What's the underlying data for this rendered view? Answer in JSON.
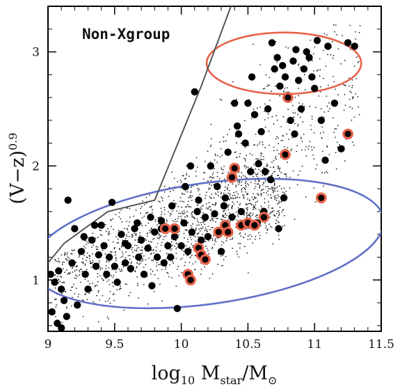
{
  "chart_data": {
    "type": "scatter",
    "title": "Non-Xgroup",
    "xlabel": {
      "main": "log",
      "sub1": "10",
      "mid": " M",
      "sub2": "star",
      "tail": "/M",
      "sub3": "⊙"
    },
    "ylabel": {
      "main": "(V−z)",
      "sup": "0.9"
    },
    "xlim": [
      9,
      11.5
    ],
    "ylim": [
      0.55,
      3.4
    ],
    "xticks": [
      "9",
      "9.5",
      "10",
      "10.5",
      "11",
      "11.5"
    ],
    "yticks": [
      "1",
      "2",
      "3"
    ],
    "grid": false,
    "boundary_line": {
      "color": "#555555",
      "points": [
        [
          9,
          1.15
        ],
        [
          9.12,
          1.32
        ],
        [
          9.45,
          1.6
        ],
        [
          9.8,
          1.7
        ],
        [
          10.15,
          2.7
        ],
        [
          10.42,
          3.55
        ]
      ]
    },
    "ellipses": [
      {
        "name": "red-sequence",
        "color": "#e8624a",
        "cx": 10.77,
        "cy": 2.9,
        "rx": 0.58,
        "ry": 0.27,
        "angle": 0
      },
      {
        "name": "blue-cloud",
        "color": "#6070c8",
        "cx": 10.2,
        "cy": 1.32,
        "rx": 1.33,
        "ry": 0.53,
        "angle": 8
      }
    ],
    "series": [
      {
        "type": "large",
        "color": "#000000",
        "points": [
          [
            9.02,
            1.05
          ],
          [
            9.05,
            0.98
          ],
          [
            9.08,
            1.08
          ],
          [
            9.1,
            0.92
          ],
          [
            9.12,
            0.82
          ],
          [
            9.15,
            1.7
          ],
          [
            9.18,
            1.15
          ],
          [
            9.22,
            0.78
          ],
          [
            9.25,
            1.25
          ],
          [
            9.28,
            1.05
          ],
          [
            9.3,
            0.92
          ],
          [
            9.33,
            1.35
          ],
          [
            9.36,
            1.12
          ],
          [
            9.38,
            1.22
          ],
          [
            9.4,
            1.48
          ],
          [
            9.42,
            1.3
          ],
          [
            9.44,
            1.05
          ],
          [
            9.46,
            1.2
          ],
          [
            9.5,
            1.12
          ],
          [
            9.52,
            0.98
          ],
          [
            9.55,
            1.4
          ],
          [
            9.58,
            1.15
          ],
          [
            9.6,
            1.3
          ],
          [
            9.62,
            1.1
          ],
          [
            9.65,
            1.45
          ],
          [
            9.68,
            1.2
          ],
          [
            9.7,
            1.35
          ],
          [
            9.72,
            1.05
          ],
          [
            9.75,
            1.28
          ],
          [
            9.78,
            0.95
          ],
          [
            9.8,
            1.42
          ],
          [
            9.82,
            1.2
          ],
          [
            9.85,
            1.45
          ],
          [
            9.87,
            1.15
          ],
          [
            9.9,
            1.3
          ],
          [
            9.92,
            1.2
          ],
          [
            9.95,
            1.38
          ],
          [
            9.97,
            0.75
          ],
          [
            10.0,
            1.3
          ],
          [
            10.02,
            1.5
          ],
          [
            10.05,
            1.25
          ],
          [
            10.08,
            1.42
          ],
          [
            10.1,
            2.65
          ],
          [
            10.12,
            1.6
          ],
          [
            10.15,
            1.35
          ],
          [
            10.18,
            1.55
          ],
          [
            10.2,
            1.38
          ],
          [
            10.22,
            2.0
          ],
          [
            10.25,
            1.58
          ],
          [
            10.28,
            1.4
          ],
          [
            10.3,
            1.25
          ],
          [
            10.32,
            1.65
          ],
          [
            10.35,
            2.12
          ],
          [
            10.38,
            1.55
          ],
          [
            10.4,
            2.55
          ],
          [
            10.42,
            2.35
          ],
          [
            10.45,
            1.6
          ],
          [
            10.48,
            2.2
          ],
          [
            10.5,
            2.55
          ],
          [
            10.52,
            1.95
          ],
          [
            10.55,
            2.45
          ],
          [
            10.58,
            2.02
          ],
          [
            10.6,
            2.3
          ],
          [
            10.62,
            1.6
          ],
          [
            10.65,
            2.5
          ],
          [
            10.68,
            3.08
          ],
          [
            10.7,
            2.85
          ],
          [
            10.72,
            2.95
          ],
          [
            10.74,
            2.7
          ],
          [
            10.76,
            2.88
          ],
          [
            10.78,
            2.78
          ],
          [
            10.8,
            2.62
          ],
          [
            10.82,
            2.4
          ],
          [
            10.84,
            2.92
          ],
          [
            10.86,
            3.02
          ],
          [
            10.88,
            2.75
          ],
          [
            10.9,
            2.5
          ],
          [
            10.92,
            2.85
          ],
          [
            10.94,
            3.0
          ],
          [
            10.96,
            2.95
          ],
          [
            10.98,
            2.78
          ],
          [
            11.0,
            2.68
          ],
          [
            11.02,
            3.1
          ],
          [
            11.05,
            2.4
          ],
          [
            11.08,
            2.05
          ],
          [
            11.1,
            3.05
          ],
          [
            11.15,
            2.55
          ],
          [
            11.2,
            2.15
          ],
          [
            11.25,
            3.08
          ],
          [
            11.3,
            3.05
          ],
          [
            9.03,
            0.72
          ],
          [
            9.07,
            0.62
          ],
          [
            9.1,
            0.58
          ],
          [
            9.14,
            0.68
          ],
          [
            9.2,
            1.45
          ],
          [
            9.27,
            1.38
          ],
          [
            9.35,
            1.48
          ],
          [
            9.48,
            1.68
          ],
          [
            9.58,
            1.32
          ],
          [
            9.67,
            1.5
          ],
          [
            9.77,
            1.55
          ],
          [
            9.85,
            1.52
          ],
          [
            9.93,
            1.65
          ],
          [
            10.03,
            1.82
          ],
          [
            10.07,
            2.0
          ],
          [
            10.13,
            1.7
          ],
          [
            10.27,
            1.82
          ],
          [
            10.33,
            1.72
          ],
          [
            10.43,
            2.28
          ],
          [
            10.53,
            2.78
          ],
          [
            10.57,
            1.5
          ],
          [
            10.63,
            1.95
          ],
          [
            10.67,
            1.88
          ],
          [
            10.73,
            1.45
          ],
          [
            10.77,
            1.72
          ],
          [
            10.85,
            2.28
          ]
        ]
      },
      {
        "type": "highlighted",
        "color": "#000000",
        "ring": "#e8624a",
        "points": [
          [
            9.88,
            1.45
          ],
          [
            9.95,
            1.45
          ],
          [
            10.05,
            1.05
          ],
          [
            10.07,
            1.0
          ],
          [
            10.13,
            1.28
          ],
          [
            10.15,
            1.22
          ],
          [
            10.18,
            1.18
          ],
          [
            10.28,
            1.42
          ],
          [
            10.33,
            1.48
          ],
          [
            10.35,
            1.42
          ],
          [
            10.38,
            1.9
          ],
          [
            10.4,
            1.98
          ],
          [
            10.45,
            1.48
          ],
          [
            10.5,
            1.5
          ],
          [
            10.55,
            1.48
          ],
          [
            10.62,
            1.55
          ],
          [
            10.78,
            2.1
          ],
          [
            10.8,
            2.6
          ],
          [
            11.05,
            1.72
          ],
          [
            11.25,
            2.28
          ]
        ]
      },
      {
        "type": "small",
        "color": "#222222",
        "count": 1900
      }
    ]
  }
}
